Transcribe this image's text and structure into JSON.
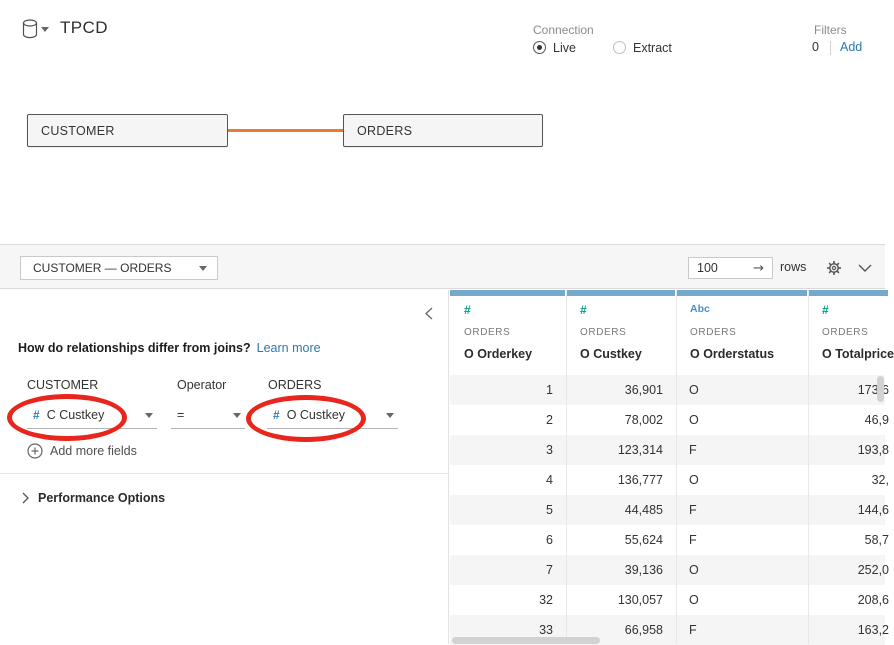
{
  "header": {
    "title": "TPCD",
    "connection_label": "Connection",
    "live_label": "Live",
    "extract_label": "Extract",
    "filters_label": "Filters",
    "filters_count": "0",
    "add_label": "Add"
  },
  "canvas": {
    "tables": [
      {
        "name": "CUSTOMER"
      },
      {
        "name": "ORDERS"
      }
    ]
  },
  "toolbar": {
    "relationship_selector": "CUSTOMER  —  ORDERS",
    "row_limit": "100",
    "rows_label": "rows"
  },
  "relationship_panel": {
    "question": "How do relationships differ from joins?",
    "learn_more": "Learn more",
    "left_table_label": "CUSTOMER",
    "operator_label": "Operator",
    "right_table_label": "ORDERS",
    "left_field": "C Custkey",
    "operator": "=",
    "right_field": "O Custkey",
    "left_field_icon": "#",
    "right_field_icon": "#",
    "add_more_fields": "Add more fields",
    "performance_options": "Performance Options"
  },
  "grid": {
    "columns": [
      {
        "type": "number",
        "type_icon": "#",
        "table": "ORDERS",
        "field": "O Orderkey"
      },
      {
        "type": "number",
        "type_icon": "#",
        "table": "ORDERS",
        "field": "O Custkey"
      },
      {
        "type": "string",
        "type_icon": "Abc",
        "table": "ORDERS",
        "field": "O Orderstatus"
      },
      {
        "type": "number",
        "type_icon": "#",
        "table": "ORDERS",
        "field": "O Totalprice"
      }
    ],
    "rows": [
      [
        "1",
        "36,901",
        "O",
        "173,6"
      ],
      [
        "2",
        "78,002",
        "O",
        "46,9"
      ],
      [
        "3",
        "123,314",
        "F",
        "193,8"
      ],
      [
        "4",
        "136,777",
        "O",
        "32,"
      ],
      [
        "5",
        "44,485",
        "F",
        "144,6"
      ],
      [
        "6",
        "55,624",
        "F",
        "58,7"
      ],
      [
        "7",
        "39,136",
        "O",
        "252,0"
      ],
      [
        "32",
        "130,057",
        "O",
        "208,6"
      ],
      [
        "33",
        "66,958",
        "F",
        "163,2"
      ]
    ]
  },
  "colors": {
    "noodle": "#ed7a30",
    "annotation": "#e8261d",
    "header_strip": "#74a9cb",
    "number_icon_green": "#00a08a",
    "string_icon_blue": "#4a90c4",
    "panel_field_icon_blue": "#3a7cb8",
    "link_blue": "#2a79af"
  }
}
